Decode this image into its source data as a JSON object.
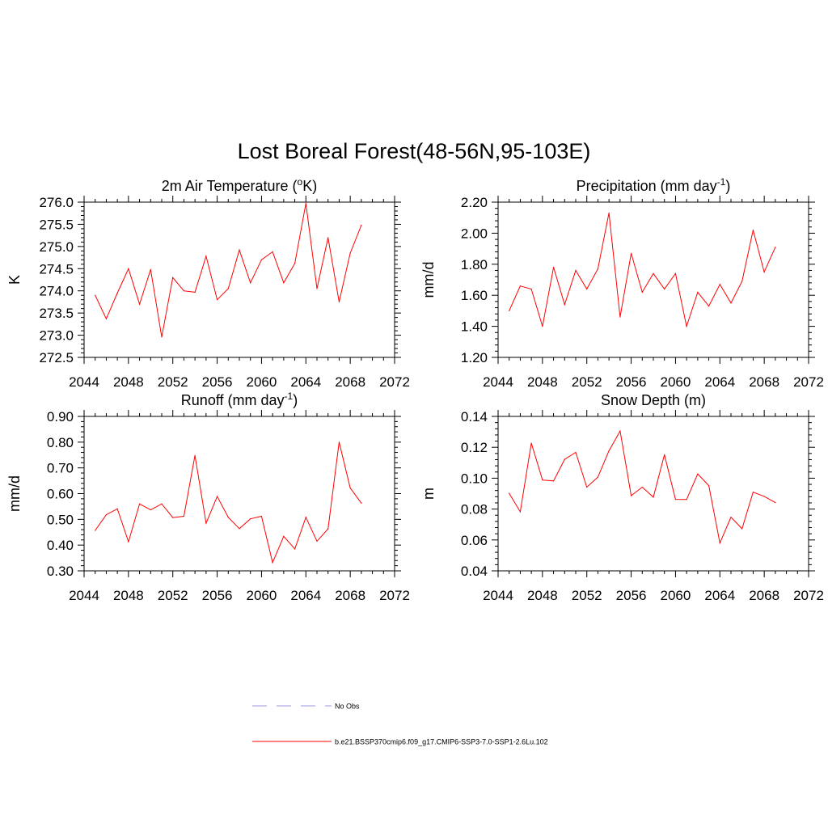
{
  "title": "Lost Boreal Forest(48-56N,95-103E)",
  "colors": {
    "model_line": "#ff0000",
    "obs_line": "#9999dd",
    "axis": "#000000"
  },
  "legend": {
    "items": [
      {
        "label": "No Obs",
        "style": "dashed",
        "color": "#9999dd"
      },
      {
        "label": "b.e21.BSSP370cmip6.f09_g17.CMIP6-SSP3-7.0-SSP1-2.6Lu.102",
        "style": "solid",
        "color": "#ff0000"
      }
    ]
  },
  "chart_data": [
    {
      "type": "line",
      "title": "2m Air Temperature (",
      "title_sup": "o",
      "title_after": "K)",
      "ylabel": "K",
      "xlim": [
        2044,
        2072
      ],
      "ylim": [
        272.5,
        276.0
      ],
      "xticks": [
        2044,
        2048,
        2052,
        2056,
        2060,
        2064,
        2068,
        2072
      ],
      "yticks": [
        272.5,
        273.0,
        273.5,
        274.0,
        274.5,
        275.0,
        275.5,
        276.0
      ],
      "ytick_labels": [
        "272.5",
        "273.0",
        "273.5",
        "274.0",
        "274.5",
        "275.0",
        "275.5",
        "276.0"
      ],
      "x": [
        2045,
        2046,
        2047,
        2048,
        2049,
        2050,
        2051,
        2052,
        2053,
        2054,
        2055,
        2056,
        2057,
        2058,
        2059,
        2060,
        2061,
        2062,
        2063,
        2064,
        2065,
        2066,
        2067,
        2068,
        2069
      ],
      "series": [
        {
          "values": [
            273.9,
            273.37,
            273.95,
            274.5,
            273.7,
            274.48,
            272.96,
            274.3,
            274.0,
            273.97,
            274.78,
            273.8,
            274.05,
            274.92,
            274.18,
            274.7,
            274.88,
            274.18,
            274.62,
            275.97,
            274.05,
            275.2,
            273.75,
            274.85,
            275.48
          ]
        }
      ]
    },
    {
      "type": "line",
      "title": "Precipitation (mm day",
      "title_sup": "-1",
      "title_after": ")",
      "ylabel": "mm/d",
      "xlim": [
        2044,
        2072
      ],
      "ylim": [
        1.2,
        2.2
      ],
      "xticks": [
        2044,
        2048,
        2052,
        2056,
        2060,
        2064,
        2068,
        2072
      ],
      "yticks": [
        1.2,
        1.4,
        1.6,
        1.8,
        2.0,
        2.2
      ],
      "ytick_labels": [
        "1.20",
        "1.40",
        "1.60",
        "1.80",
        "2.00",
        "2.20"
      ],
      "x": [
        2045,
        2046,
        2047,
        2048,
        2049,
        2050,
        2051,
        2052,
        2053,
        2054,
        2055,
        2056,
        2057,
        2058,
        2059,
        2060,
        2061,
        2062,
        2063,
        2064,
        2065,
        2066,
        2067,
        2068,
        2069
      ],
      "series": [
        {
          "values": [
            1.5,
            1.66,
            1.64,
            1.4,
            1.78,
            1.54,
            1.76,
            1.64,
            1.77,
            2.13,
            1.46,
            1.87,
            1.62,
            1.74,
            1.64,
            1.74,
            1.4,
            1.62,
            1.53,
            1.67,
            1.55,
            1.69,
            2.02,
            1.75,
            1.91
          ]
        }
      ]
    },
    {
      "type": "line",
      "title": "Runoff (mm day",
      "title_sup": "-1",
      "title_after": ")",
      "ylabel": "mm/d",
      "xlim": [
        2044,
        2072
      ],
      "ylim": [
        0.3,
        0.9
      ],
      "xticks": [
        2044,
        2048,
        2052,
        2056,
        2060,
        2064,
        2068,
        2072
      ],
      "yticks": [
        0.3,
        0.4,
        0.5,
        0.6,
        0.7,
        0.8,
        0.9
      ],
      "ytick_labels": [
        "0.30",
        "0.40",
        "0.50",
        "0.60",
        "0.70",
        "0.80",
        "0.90"
      ],
      "x": [
        2045,
        2046,
        2047,
        2048,
        2049,
        2050,
        2051,
        2052,
        2053,
        2054,
        2055,
        2056,
        2057,
        2058,
        2059,
        2060,
        2061,
        2062,
        2063,
        2064,
        2065,
        2066,
        2067,
        2068,
        2069
      ],
      "series": [
        {
          "values": [
            0.457,
            0.518,
            0.541,
            0.413,
            0.56,
            0.537,
            0.56,
            0.507,
            0.512,
            0.748,
            0.485,
            0.589,
            0.508,
            0.464,
            0.502,
            0.512,
            0.332,
            0.434,
            0.385,
            0.508,
            0.415,
            0.463,
            0.8,
            0.622,
            0.563
          ]
        }
      ]
    },
    {
      "type": "line",
      "title": "Snow Depth (m)",
      "title_sup": "",
      "title_after": "",
      "ylabel": "m",
      "xlim": [
        2044,
        2072
      ],
      "ylim": [
        0.04,
        0.14
      ],
      "xticks": [
        2044,
        2048,
        2052,
        2056,
        2060,
        2064,
        2068,
        2072
      ],
      "yticks": [
        0.04,
        0.06,
        0.08,
        0.1,
        0.12,
        0.14
      ],
      "ytick_labels": [
        "0.04",
        "0.06",
        "0.08",
        "0.10",
        "0.12",
        "0.14"
      ],
      "x": [
        2045,
        2046,
        2047,
        2048,
        2049,
        2050,
        2051,
        2052,
        2053,
        2054,
        2055,
        2056,
        2057,
        2058,
        2059,
        2060,
        2061,
        2062,
        2063,
        2064,
        2065,
        2066,
        2067,
        2068,
        2069
      ],
      "series": [
        {
          "values": [
            0.0902,
            0.0782,
            0.1227,
            0.0988,
            0.0982,
            0.1122,
            0.1167,
            0.0942,
            0.1007,
            0.1177,
            0.1305,
            0.0887,
            0.0942,
            0.0877,
            0.1152,
            0.0863,
            0.0862,
            0.1027,
            0.0952,
            0.058,
            0.0747,
            0.0673,
            0.091,
            0.0882,
            0.0842
          ]
        }
      ]
    }
  ]
}
